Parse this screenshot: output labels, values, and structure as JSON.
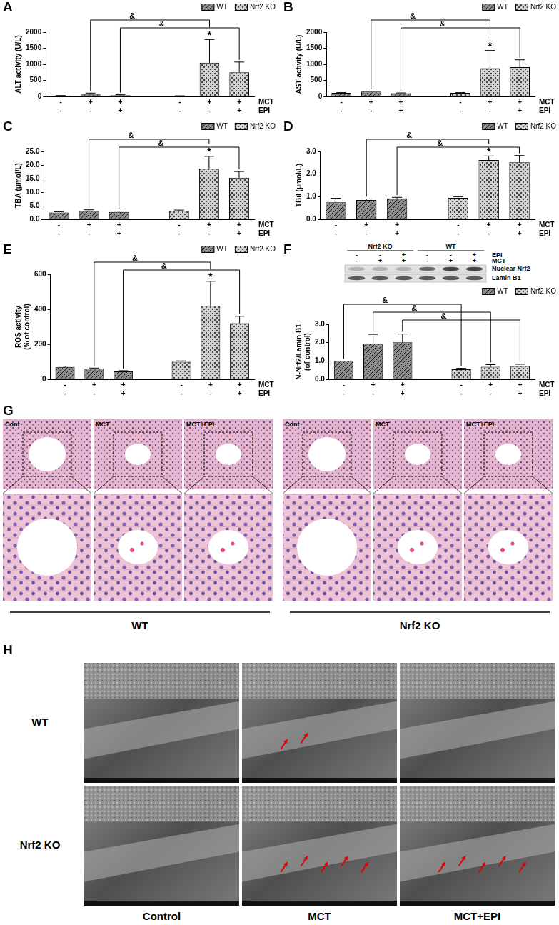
{
  "chart_data": [
    {
      "panel": "A",
      "type": "bar",
      "y_label": "ALT activity (U/L)",
      "categories": [
        [
          "-",
          "-"
        ],
        [
          "+",
          "-"
        ],
        [
          "+",
          "+"
        ],
        null,
        [
          "-",
          "-"
        ],
        [
          "+",
          "-"
        ],
        [
          "+",
          "+"
        ]
      ],
      "row_labels": [
        "MCT",
        "EPI"
      ],
      "series": [
        {
          "name": "WT",
          "color": "#8c8c8c",
          "values": [
            20,
            80,
            40,
            null,
            null,
            null,
            null
          ],
          "errors": [
            8,
            25,
            12,
            null,
            null,
            null,
            null
          ]
        },
        {
          "name": "Nrf2 KO",
          "color": "#d0d0d0",
          "values": [
            null,
            null,
            null,
            null,
            15,
            1050,
            750
          ],
          "errors": [
            null,
            null,
            null,
            null,
            5,
            720,
            320
          ]
        }
      ],
      "ylim": [
        0,
        2000
      ],
      "yticks": [
        0,
        500,
        1000,
        1500,
        2000
      ],
      "grid": false,
      "legend": "top-right",
      "comparisons": [
        {
          "from": 1,
          "to": 5,
          "label": "&"
        },
        {
          "from": 2,
          "to": 6,
          "label": "&"
        }
      ],
      "annotations": [
        {
          "index": 5,
          "label": "*"
        }
      ]
    },
    {
      "panel": "B",
      "type": "bar",
      "y_label": "AST activity (U/L)",
      "categories": [
        [
          "-",
          "-"
        ],
        [
          "+",
          "-"
        ],
        [
          "+",
          "+"
        ],
        null,
        [
          "-",
          "-"
        ],
        [
          "+",
          "-"
        ],
        [
          "+",
          "+"
        ]
      ],
      "row_labels": [
        "MCT",
        "EPI"
      ],
      "series": [
        {
          "name": "WT",
          "color": "#8c8c8c",
          "values": [
            110,
            150,
            100,
            null,
            null,
            null,
            null
          ],
          "errors": [
            10,
            15,
            10,
            null,
            null,
            null,
            null
          ]
        },
        {
          "name": "Nrf2 KO",
          "color": "#d0d0d0",
          "values": [
            null,
            null,
            null,
            null,
            110,
            880,
            910
          ],
          "errors": [
            null,
            null,
            null,
            null,
            10,
            550,
            230
          ]
        }
      ],
      "ylim": [
        0,
        2000
      ],
      "yticks": [
        0,
        500,
        1000,
        1500,
        2000
      ],
      "grid": false,
      "legend": "top-right",
      "comparisons": [
        {
          "from": 1,
          "to": 5,
          "label": "&"
        },
        {
          "from": 2,
          "to": 6,
          "label": "&"
        }
      ],
      "annotations": [
        {
          "index": 5,
          "label": "*"
        }
      ]
    },
    {
      "panel": "C",
      "type": "bar",
      "y_label": "TBA (μmol/L)",
      "categories": [
        [
          "-",
          "-"
        ],
        [
          "+",
          "-"
        ],
        [
          "+",
          "+"
        ],
        null,
        [
          "-",
          "-"
        ],
        [
          "+",
          "-"
        ],
        [
          "+",
          "+"
        ]
      ],
      "row_labels": [
        "MCT",
        "EPI"
      ],
      "series": [
        {
          "name": "WT",
          "color": "#8c8c8c",
          "values": [
            2.5,
            3.0,
            2.7,
            null,
            null,
            null,
            null
          ],
          "errors": [
            0.3,
            0.5,
            0.3,
            null,
            null,
            null,
            null
          ]
        },
        {
          "name": "Nrf2 KO",
          "color": "#d0d0d0",
          "values": [
            null,
            null,
            null,
            null,
            3.1,
            18.7,
            15.3
          ],
          "errors": [
            null,
            null,
            null,
            null,
            0.3,
            4.5,
            2.3
          ]
        }
      ],
      "ylim": [
        0,
        25
      ],
      "yticks": [
        {
          "value": 0,
          "label": "0.0"
        },
        {
          "value": 5,
          "label": "5.0"
        },
        {
          "value": 10,
          "label": "10.0"
        },
        {
          "value": 15,
          "label": "15.0"
        },
        {
          "value": 20,
          "label": "20.0"
        },
        {
          "value": 25,
          "label": "25.0"
        }
      ],
      "grid": false,
      "legend": "top-right",
      "comparisons": [
        {
          "from": 1,
          "to": 5,
          "label": "&"
        },
        {
          "from": 2,
          "to": 6,
          "label": "&"
        }
      ],
      "annotations": [
        {
          "index": 5,
          "label": "*"
        }
      ]
    },
    {
      "panel": "D",
      "type": "bar",
      "y_label": "TBil (μmol/L)",
      "categories": [
        [
          "-",
          "-"
        ],
        [
          "+",
          "-"
        ],
        [
          "+",
          "+"
        ],
        null,
        [
          "-",
          "-"
        ],
        [
          "+",
          "-"
        ],
        [
          "+",
          "+"
        ]
      ],
      "row_labels": [
        "MCT",
        "EPI"
      ],
      "series": [
        {
          "name": "WT",
          "color": "#8c8c8c",
          "values": [
            0.75,
            0.85,
            0.92,
            null,
            null,
            null,
            null
          ],
          "errors": [
            0.18,
            0.05,
            0.05,
            null,
            null,
            null,
            null
          ]
        },
        {
          "name": "Nrf2 KO",
          "color": "#d0d0d0",
          "values": [
            null,
            null,
            null,
            null,
            0.95,
            2.62,
            2.52
          ],
          "errors": [
            null,
            null,
            null,
            null,
            0.05,
            0.18,
            0.3
          ]
        }
      ],
      "ylim": [
        0,
        3
      ],
      "yticks": [
        {
          "value": 0,
          "label": "0.0"
        },
        {
          "value": 1,
          "label": "1.0"
        },
        {
          "value": 2,
          "label": "2.0"
        },
        {
          "value": 3,
          "label": "3.0"
        }
      ],
      "grid": false,
      "legend": "top-right",
      "comparisons": [
        {
          "from": 1,
          "to": 5,
          "label": "&"
        },
        {
          "from": 2,
          "to": 6,
          "label": "&"
        }
      ],
      "annotations": [
        {
          "index": 5,
          "label": "*"
        }
      ]
    },
    {
      "panel": "E",
      "type": "bar",
      "y_label": [
        "ROS activity",
        "(% of control)"
      ],
      "categories": [
        [
          "-",
          "-"
        ],
        [
          "+",
          "-"
        ],
        [
          "+",
          "+"
        ],
        null,
        [
          "-",
          "-"
        ],
        [
          "+",
          "-"
        ],
        [
          "+",
          "+"
        ]
      ],
      "row_labels": [
        "MCT",
        "EPI"
      ],
      "series": [
        {
          "name": "WT",
          "color": "#8c8c8c",
          "values": [
            70,
            60,
            45,
            null,
            null,
            null,
            null
          ],
          "errors": [
            5,
            4,
            4,
            null,
            null,
            null,
            null
          ]
        },
        {
          "name": "Nrf2 KO",
          "color": "#d0d0d0",
          "values": [
            null,
            null,
            null,
            null,
            100,
            420,
            320
          ],
          "errors": [
            null,
            null,
            null,
            null,
            5,
            140,
            40
          ]
        }
      ],
      "ylim": [
        0,
        600
      ],
      "yticks": [
        0,
        200,
        400,
        600
      ],
      "grid": false,
      "legend": "top-right",
      "comparisons": [
        {
          "from": 1,
          "to": 5,
          "label": "&"
        },
        {
          "from": 2,
          "to": 6,
          "label": "&"
        }
      ],
      "annotations": [
        {
          "index": 5,
          "label": "*"
        }
      ]
    },
    {
      "panel": "F",
      "type": "bar",
      "y_label": [
        "N-Nrf2/Lamin B1",
        "(of control)"
      ],
      "categories": [
        [
          "-",
          "-"
        ],
        [
          "+",
          "-"
        ],
        [
          "+",
          "+"
        ],
        null,
        [
          "-",
          "-"
        ],
        [
          "+",
          "-"
        ],
        [
          "+",
          "+"
        ]
      ],
      "row_labels": [
        "MCT",
        "EPI"
      ],
      "series": [
        {
          "name": "WT",
          "color": "#8c8c8c",
          "values": [
            1.0,
            1.95,
            2.02,
            null,
            null,
            null,
            null
          ],
          "errors": [
            null,
            0.5,
            0.45,
            null,
            null,
            null,
            null
          ]
        },
        {
          "name": "Nrf2 KO",
          "color": "#d0d0d0",
          "values": [
            null,
            null,
            null,
            null,
            0.55,
            0.68,
            0.72
          ],
          "errors": [
            null,
            null,
            null,
            null,
            0.05,
            0.12,
            0.1
          ]
        }
      ],
      "ylim": [
        0,
        3
      ],
      "yticks": [
        {
          "value": 0,
          "label": "0.0"
        },
        {
          "value": 1,
          "label": "1.0"
        },
        {
          "value": 2,
          "label": "2.0"
        },
        {
          "value": 3,
          "label": "3.0"
        }
      ],
      "grid": false,
      "legend": "top-right",
      "comparisons": [
        {
          "from": 0,
          "to": 4,
          "label": "&"
        },
        {
          "from": 1,
          "to": 5,
          "label": "&"
        },
        {
          "from": 2,
          "to": 6,
          "label": "&"
        }
      ],
      "blot": {
        "groups": [
          "Nrf2 KO",
          "WT"
        ],
        "rows": [
          {
            "label": "EPI",
            "signs": [
              "-",
              "-",
              "+",
              "-",
              "-",
              "+"
            ]
          },
          {
            "label": "MCT",
            "signs": [
              "-",
              "+",
              "+",
              "-",
              "+",
              "+"
            ]
          }
        ],
        "bands": [
          "Nuclear Nrf2",
          "Lamin B1"
        ]
      }
    }
  ],
  "histology": {
    "panel": "G",
    "groups": [
      {
        "label": "WT",
        "images": [
          "Cont",
          "MCT",
          "MCT+EPI"
        ]
      },
      {
        "label": "Nrf2 KO",
        "images": [
          "Cont",
          "MCT",
          "MCT+EPI"
        ]
      }
    ]
  },
  "sem": {
    "panel": "H",
    "rows": [
      "WT",
      "Nrf2 KO"
    ],
    "columns": [
      "Control",
      "MCT",
      "MCT+EPI"
    ]
  }
}
